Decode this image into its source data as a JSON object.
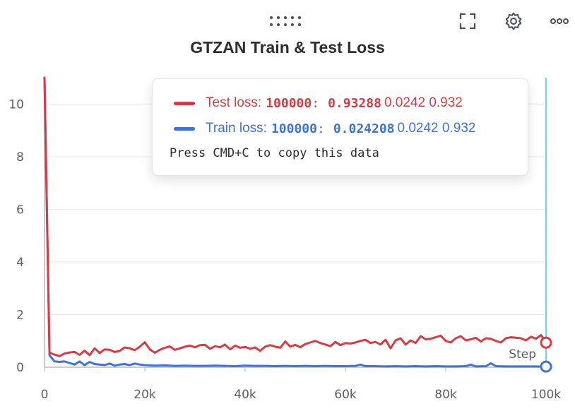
{
  "panel": {
    "title": "GTZAN Train & Test Loss",
    "icons": {
      "drag": "drag-handle-icon",
      "fullscreen": "fullscreen-icon",
      "settings": "gear-icon",
      "more": "more-horizontal-icon"
    }
  },
  "chart_data": {
    "type": "line",
    "title": "GTZAN Train & Test Loss",
    "xlabel": "Step",
    "ylabel": "",
    "xlim": [
      0,
      100000
    ],
    "ylim": [
      0,
      11
    ],
    "xticks": [
      0,
      20000,
      40000,
      60000,
      80000,
      100000
    ],
    "xtick_labels": [
      "0",
      "20k",
      "40k",
      "60k",
      "80k",
      "100k"
    ],
    "yticks": [
      0,
      2,
      4,
      6,
      8,
      10
    ],
    "ytick_labels": [
      "0",
      "2",
      "4",
      "6",
      "8",
      "10"
    ],
    "grid": "horizontal",
    "hover_step": 100000,
    "colors": {
      "test": "#d63c43",
      "train": "#3f74d6",
      "hover_line": "#3cc7e4",
      "grid": "#e8e9ec",
      "axis": "#c8cad0"
    },
    "series": [
      {
        "name": "Test loss",
        "color": "#d63c43",
        "x": [
          0,
          1000,
          2000,
          3000,
          4000,
          5000,
          6000,
          7000,
          8000,
          9000,
          10000,
          11000,
          12000,
          13000,
          14000,
          15000,
          16000,
          17000,
          18000,
          19000,
          20000,
          21000,
          22000,
          23000,
          24000,
          25000,
          26000,
          27000,
          28000,
          29000,
          30000,
          31000,
          32000,
          33000,
          34000,
          35000,
          36000,
          37000,
          38000,
          39000,
          40000,
          41000,
          42000,
          43000,
          44000,
          45000,
          46000,
          47000,
          48000,
          49000,
          50000,
          51000,
          52000,
          53000,
          54000,
          55000,
          56000,
          57000,
          58000,
          59000,
          60000,
          61000,
          62000,
          63000,
          64000,
          65000,
          66000,
          67000,
          68000,
          69000,
          70000,
          71000,
          72000,
          73000,
          74000,
          75000,
          76000,
          77000,
          78000,
          79000,
          80000,
          81000,
          82000,
          83000,
          84000,
          85000,
          86000,
          87000,
          88000,
          89000,
          90000,
          91000,
          92000,
          93000,
          94000,
          95000,
          96000,
          97000,
          98000,
          99000,
          100000
        ],
        "y": [
          11,
          0.55,
          0.48,
          0.42,
          0.52,
          0.56,
          0.58,
          0.47,
          0.63,
          0.46,
          0.72,
          0.54,
          0.68,
          0.66,
          0.58,
          0.62,
          0.75,
          0.72,
          0.65,
          0.78,
          0.95,
          0.68,
          0.55,
          0.66,
          0.74,
          0.79,
          0.66,
          0.72,
          0.78,
          0.82,
          0.76,
          0.84,
          0.85,
          0.7,
          0.8,
          0.76,
          0.86,
          0.68,
          0.82,
          0.74,
          0.77,
          0.7,
          0.75,
          0.62,
          0.78,
          0.84,
          0.78,
          0.74,
          0.98,
          0.78,
          0.85,
          0.76,
          0.88,
          0.94,
          1.0,
          0.92,
          0.86,
          0.8,
          0.96,
          0.84,
          0.92,
          0.9,
          0.94,
          1.0,
          1.04,
          0.92,
          0.96,
          0.86,
          1.04,
          0.72,
          1.02,
          1.1,
          0.86,
          1.02,
          0.92,
          1.18,
          1.06,
          1.08,
          1.14,
          1.2,
          1.0,
          0.94,
          1.1,
          1.18,
          1.02,
          1.06,
          1.12,
          0.98,
          1.1,
          1.08,
          1.0,
          0.94,
          1.1,
          1.14,
          1.12,
          1.1,
          1.02,
          1.16,
          1.08,
          1.22,
          0.93288
        ]
      },
      {
        "name": "Train loss",
        "color": "#3f74d6",
        "x": [
          0,
          1000,
          2000,
          3000,
          4000,
          5000,
          6000,
          7000,
          8000,
          9000,
          10000,
          11000,
          12000,
          13000,
          14000,
          15000,
          16000,
          17000,
          18000,
          19000,
          20000,
          22000,
          24000,
          26000,
          28000,
          30000,
          32000,
          34000,
          36000,
          38000,
          40000,
          42000,
          44000,
          46000,
          48000,
          50000,
          52000,
          54000,
          56000,
          58000,
          60000,
          62000,
          63000,
          64000,
          66000,
          68000,
          70000,
          72000,
          74000,
          76000,
          78000,
          80000,
          82000,
          84000,
          85000,
          86000,
          88000,
          89000,
          90000,
          92000,
          94000,
          96000,
          98000,
          100000
        ],
        "y": [
          11,
          0.45,
          0.22,
          0.2,
          0.22,
          0.16,
          0.1,
          0.22,
          0.08,
          0.2,
          0.12,
          0.1,
          0.08,
          0.14,
          0.06,
          0.1,
          0.12,
          0.08,
          0.14,
          0.1,
          0.08,
          0.06,
          0.07,
          0.05,
          0.06,
          0.05,
          0.05,
          0.06,
          0.05,
          0.04,
          0.06,
          0.05,
          0.05,
          0.04,
          0.05,
          0.04,
          0.05,
          0.04,
          0.05,
          0.04,
          0.04,
          0.05,
          0.1,
          0.04,
          0.04,
          0.03,
          0.04,
          0.03,
          0.04,
          0.03,
          0.04,
          0.03,
          0.03,
          0.04,
          0.1,
          0.03,
          0.04,
          0.15,
          0.04,
          0.03,
          0.03,
          0.03,
          0.03,
          0.024208
        ]
      }
    ]
  },
  "tooltip": {
    "rows": [
      {
        "series": "Test loss",
        "label": "Test loss:",
        "step": "100000",
        "colon": ":",
        "value": "0.93288",
        "extra": "0.0242 0.932",
        "color": "#d63c43"
      },
      {
        "series": "Train loss",
        "label": "Train loss:",
        "step": "100000",
        "colon": ":",
        "value": "0.024208",
        "extra": "0.0242 0.932",
        "color": "#3f74d6"
      }
    ],
    "copy_hint": "Press CMD+C to copy this data"
  }
}
